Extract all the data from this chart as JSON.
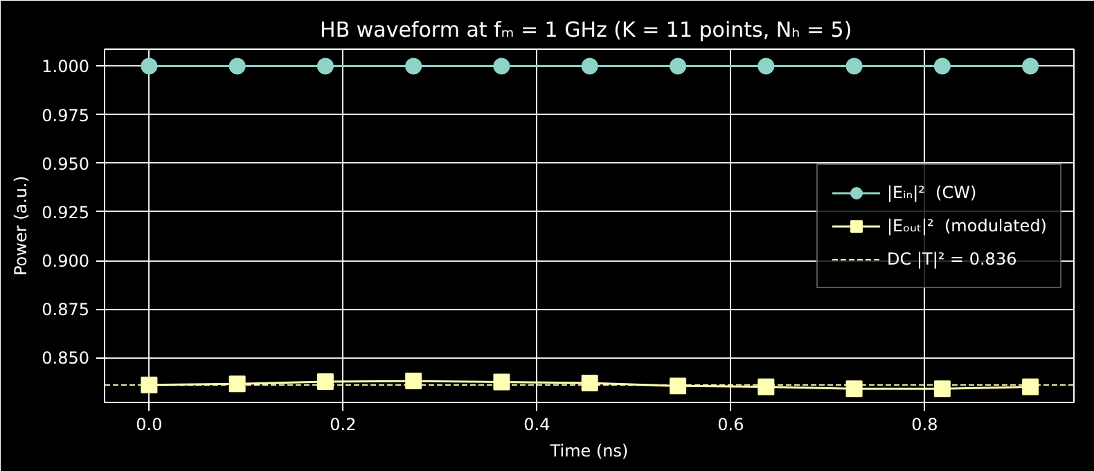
{
  "chart_data": {
    "type": "line",
    "title": "HB waveform at fₘ = 1 GHz  (K = 11 points, Nₕ = 5)",
    "xlabel": "Time (ns)",
    "ylabel": "Power (a.u.)",
    "x": [
      0,
      0.0909,
      0.1818,
      0.2727,
      0.3636,
      0.4545,
      0.5455,
      0.6364,
      0.7273,
      0.8182,
      0.9091
    ],
    "series": [
      {
        "name": "|Eᵢₙ|²  (CW)",
        "color": "#8dd3c7",
        "marker": "circle",
        "values": [
          1,
          1,
          1,
          1,
          1,
          1,
          1,
          1,
          1,
          1,
          1
        ]
      },
      {
        "name": "|Eₒᵤₜ|²  (modulated)",
        "color": "#feffb3",
        "marker": "square",
        "values": [
          0.836,
          0.8365,
          0.8377,
          0.838,
          0.8375,
          0.837,
          0.8355,
          0.835,
          0.834,
          0.834,
          0.835
        ]
      }
    ],
    "ref_lines": [
      {
        "axis": "y",
        "value": 0.836,
        "label": "DC |T|² = 0.836",
        "color": "#feffb3",
        "line_style": "dashed"
      }
    ],
    "xlim": [
      -0.046,
      0.954
    ],
    "ylim": [
      0.827,
      1.0087
    ],
    "xticks": [
      {
        "value": 0,
        "label": "0.0"
      },
      {
        "value": 0.2,
        "label": "0.2"
      },
      {
        "value": 0.4,
        "label": "0.4"
      },
      {
        "value": 0.6,
        "label": "0.6"
      },
      {
        "value": 0.8,
        "label": "0.8"
      }
    ],
    "yticks": [
      {
        "value": 0.85,
        "label": "0.850"
      },
      {
        "value": 0.875,
        "label": "0.875"
      },
      {
        "value": 0.9,
        "label": "0.900"
      },
      {
        "value": 0.925,
        "label": "0.925"
      },
      {
        "value": 0.95,
        "label": "0.950"
      },
      {
        "value": 0.975,
        "label": "0.975"
      },
      {
        "value": 1,
        "label": "1.000"
      }
    ],
    "grid": true,
    "legend": "right",
    "line_style": "solid"
  }
}
